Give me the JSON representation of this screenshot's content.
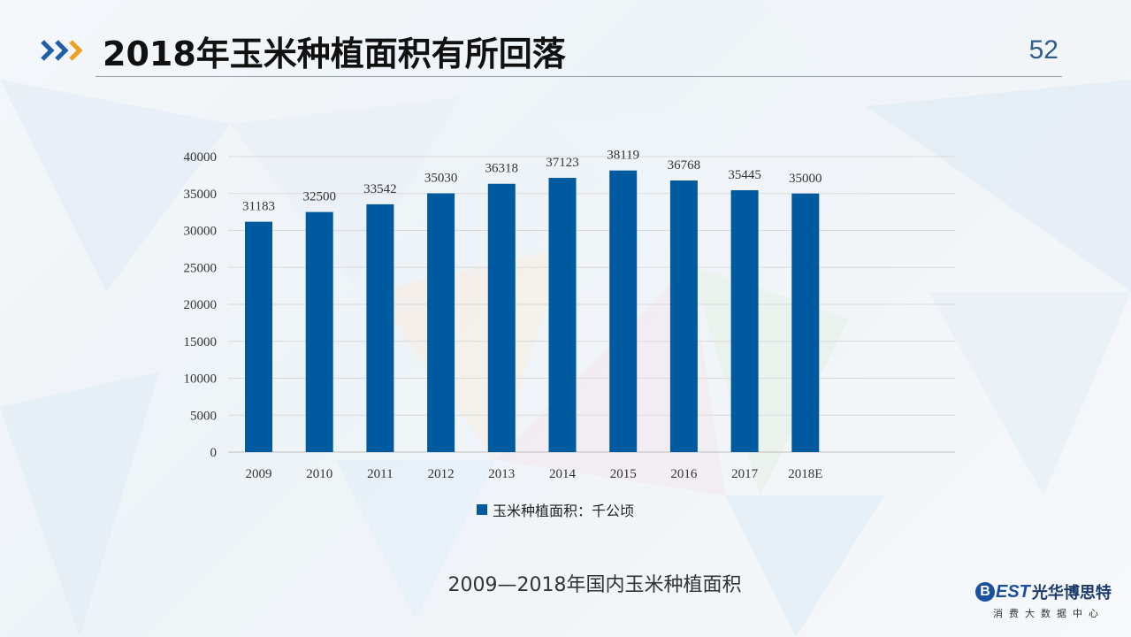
{
  "slide": {
    "title": "2018年玉米种植面积有所回落",
    "page_number": "52",
    "caption": "2009—2018年国内玉米种植面积"
  },
  "logo": {
    "mark_letter": "B",
    "mark_text": "EST",
    "company_name": "光华博思特",
    "subtitle": "消费大数据中心"
  },
  "colors": {
    "bar": "#005aa0",
    "accent_blue": "#1f5fa8",
    "accent_orange": "#f0a020"
  },
  "chart_data": {
    "type": "bar",
    "categories": [
      "2009",
      "2010",
      "2011",
      "2012",
      "2013",
      "2014",
      "2015",
      "2016",
      "2017",
      "2018E"
    ],
    "series": [
      {
        "name": "玉米种植面积：千公顷",
        "values": [
          31183,
          32500,
          33542,
          35030,
          36318,
          37123,
          38119,
          36768,
          35445,
          35000
        ]
      }
    ],
    "yticks": [
      0,
      5000,
      10000,
      15000,
      20000,
      25000,
      30000,
      35000,
      40000
    ],
    "ylim": [
      0,
      40000
    ],
    "grid": true,
    "data_labels": true,
    "legend_position": "bottom"
  }
}
